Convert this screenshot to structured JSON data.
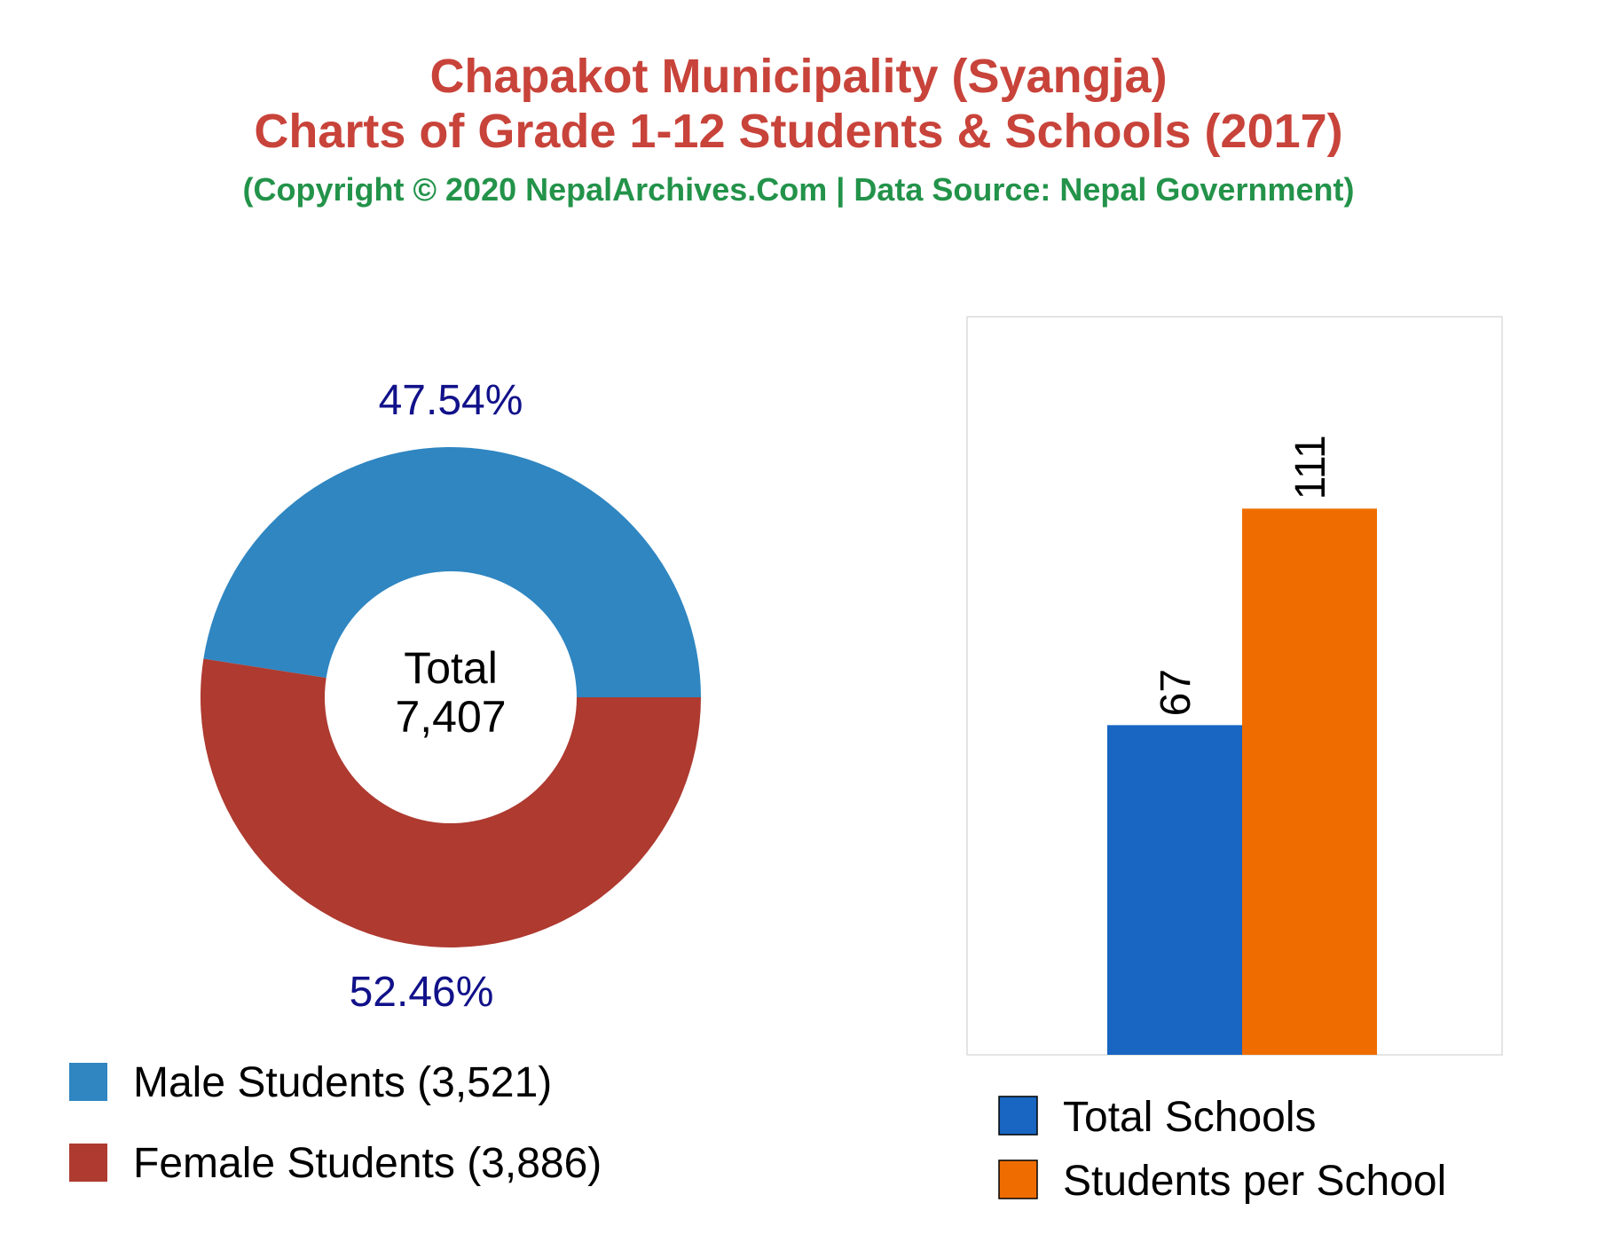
{
  "title_line1": "Chapakot Municipality (Syangja)",
  "title_line2": "Charts of Grade 1-12 Students & Schools (2017)",
  "subtitle": "(Copyright © 2020 NepalArchives.Com | Data Source: Nepal Government)",
  "chart_data": [
    {
      "type": "pie",
      "style": "donut",
      "center_label": "Total",
      "center_value": "7,407",
      "slices": [
        {
          "name": "Male Students",
          "value": 3521,
          "value_label": "3,521",
          "percent_label": "47.54%",
          "color": "#2f86c1"
        },
        {
          "name": "Female Students",
          "value": 3886,
          "value_label": "3,886",
          "percent_label": "52.46%",
          "color": "#ae3a30"
        }
      ],
      "legend": [
        "Male Students (3,521)",
        "Female Students (3,886)"
      ],
      "legend_position": "bottom-left",
      "label_color": "#11118a"
    },
    {
      "type": "bar",
      "categories": [
        "Total Schools",
        "Students per School"
      ],
      "values": [
        67,
        111
      ],
      "value_labels": [
        "67",
        "111"
      ],
      "colors": [
        "#1866c2",
        "#ef6d00"
      ],
      "ylim": [
        0,
        150
      ],
      "grid": false,
      "legend": [
        "Total Schools",
        "Students per School"
      ],
      "legend_position": "bottom"
    }
  ]
}
